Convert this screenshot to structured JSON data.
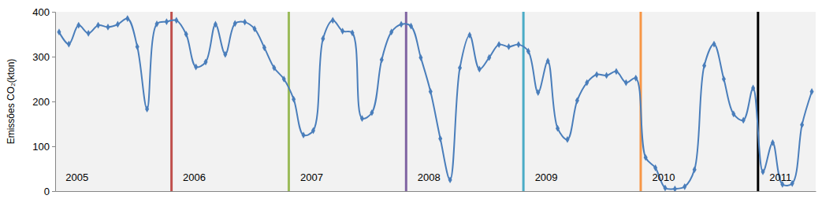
{
  "chart_data": {
    "type": "line",
    "y_label": "Emissões CO₂(kton)",
    "categories": [
      "2005",
      null,
      null,
      null,
      null,
      null,
      null,
      null,
      null,
      null,
      null,
      null,
      "2006",
      null,
      null,
      null,
      null,
      null,
      null,
      null,
      null,
      null,
      null,
      null,
      "2007",
      null,
      null,
      null,
      null,
      null,
      null,
      null,
      null,
      null,
      null,
      null,
      "2008",
      null,
      null,
      null,
      null,
      null,
      null,
      null,
      null,
      null,
      null,
      null,
      "2009",
      null,
      null,
      null,
      null,
      null,
      null,
      null,
      null,
      null,
      null,
      null,
      "2010",
      null,
      null,
      null,
      null,
      null,
      null,
      null,
      null,
      null,
      null,
      null,
      "2011",
      null,
      null,
      null,
      null,
      null
    ],
    "values": [
      355,
      328,
      370,
      352,
      370,
      366,
      372,
      385,
      322,
      183,
      373,
      378,
      381,
      350,
      277,
      288,
      372,
      305,
      374,
      377,
      362,
      320,
      275,
      250,
      205,
      125,
      135,
      340,
      381,
      357,
      353,
      162,
      175,
      293,
      355,
      372,
      368,
      298,
      222,
      117,
      25,
      275,
      348,
      272,
      298,
      327,
      322,
      327,
      312,
      220,
      290,
      140,
      115,
      202,
      242,
      260,
      258,
      267,
      242,
      252,
      75,
      52,
      7,
      5,
      10,
      48,
      280,
      328,
      250,
      172,
      158,
      230,
      43,
      108,
      15,
      17,
      148,
      222
    ],
    "color": "#4a7ebb",
    "marker": "diamond",
    "ylim": [
      0,
      400
    ],
    "yticks": [
      0,
      100,
      200,
      300,
      400
    ],
    "grid": false
  }
}
